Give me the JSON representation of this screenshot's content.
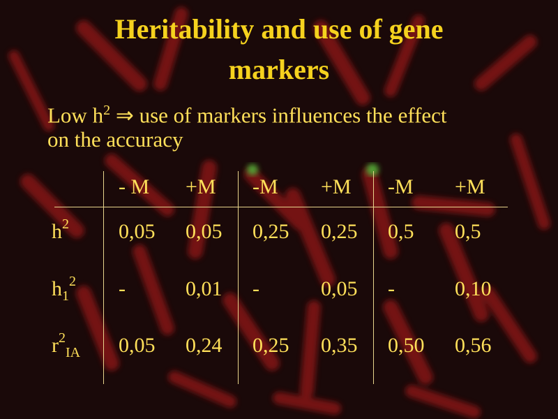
{
  "title_line1": "Heritability and use of gene",
  "title_line2": "markers",
  "subtitle_line1_prefix": "Low h",
  "subtitle_line1_sup": "2",
  "subtitle_line1_arrow": "⇒",
  "subtitle_line1_rest": "use of markers influences the effect",
  "subtitle_line2": "on the accuracy",
  "table": {
    "headers": [
      "- M",
      "+M",
      "-M",
      "+M",
      "-M",
      "+M"
    ],
    "rows": [
      {
        "label_main": "h",
        "label_sup": "2",
        "label_sub": "",
        "values": [
          "0,05",
          "0,05",
          "0,25",
          "0,25",
          "0,5",
          "0,5"
        ]
      },
      {
        "label_main": "h",
        "label_sup": "2",
        "label_sub": "1",
        "values": [
          "-",
          "0,01",
          "-",
          "0,05",
          "-",
          "0,10"
        ]
      },
      {
        "label_main": "r",
        "label_sup": "2",
        "label_sub": "IA",
        "values": [
          "0,05",
          "0,24",
          "0,25",
          "0,35",
          "0,50",
          "0,56"
        ]
      }
    ]
  },
  "colors": {
    "title": "#f5d21e",
    "text": "#ffe05a",
    "background": "#1a0909",
    "lines": "#e8d58c"
  }
}
